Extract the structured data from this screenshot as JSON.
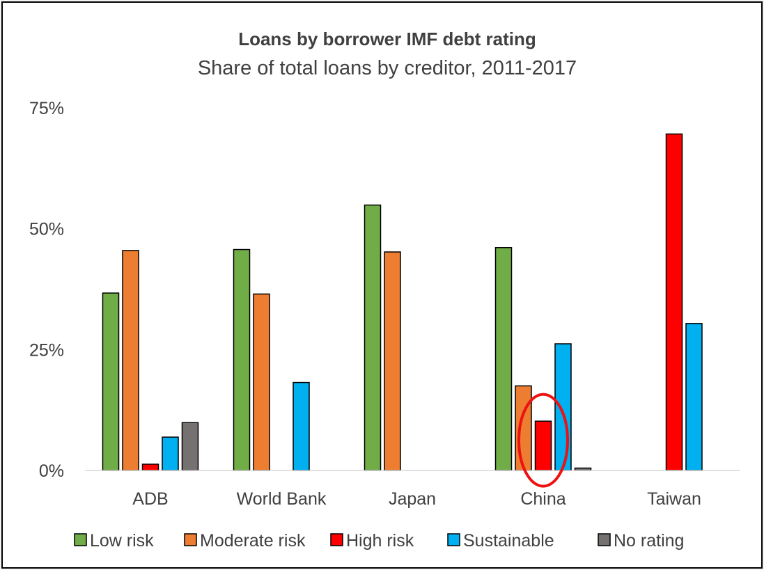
{
  "chart_data": {
    "type": "bar",
    "title": "Loans by borrower IMF debt rating",
    "subtitle": "Share of total loans by creditor, 2011-2017",
    "categories": [
      "ADB",
      "World Bank",
      "Japan",
      "China",
      "Taiwan"
    ],
    "yticks": [
      "0%",
      "25%",
      "50%",
      "75%"
    ],
    "ylim": [
      0,
      75
    ],
    "grid": false,
    "legend_position": "bottom",
    "series": [
      {
        "name": "Low risk",
        "color": "#70ad47",
        "values": [
          36.7,
          45.7,
          54.9,
          46.1,
          null
        ]
      },
      {
        "name": "Moderate risk",
        "color": "#ed7d31",
        "values": [
          45.5,
          36.5,
          45.2,
          17.5,
          null
        ]
      },
      {
        "name": "High risk",
        "color": "#ff0000",
        "values": [
          1.3,
          null,
          null,
          10.2,
          69.6
        ]
      },
      {
        "name": "Sustainable",
        "color": "#00b0f0",
        "values": [
          6.9,
          18.2,
          null,
          26.2,
          30.4
        ]
      },
      {
        "name": "No rating",
        "color": "#767171",
        "values": [
          9.9,
          null,
          null,
          0.5,
          null
        ]
      }
    ],
    "annotations": [
      {
        "type": "ellipse",
        "category": "China",
        "series": "High risk",
        "color": "#ee1111"
      }
    ]
  }
}
